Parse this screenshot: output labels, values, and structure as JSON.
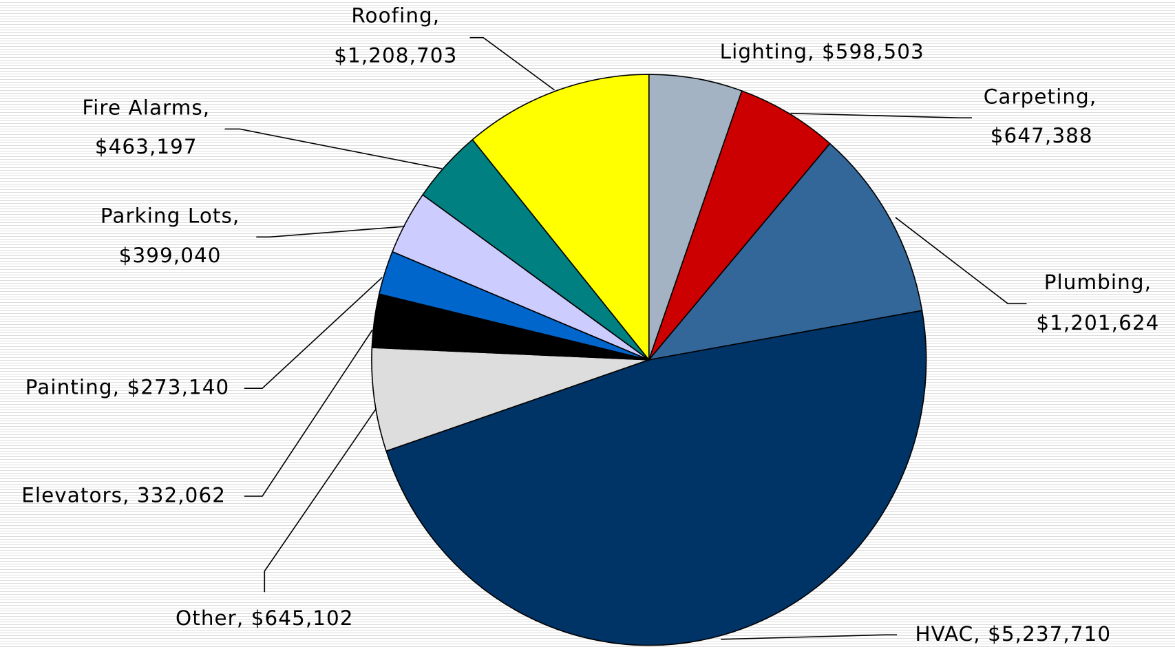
{
  "chart_data": {
    "type": "pie",
    "categories": [
      "Lighting",
      "Carpeting",
      "Plumbing",
      "HVAC",
      "Other",
      "Elevators",
      "Painting",
      "Parking Lots",
      "Fire Alarms",
      "Roofing"
    ],
    "values": [
      598503,
      647388,
      1201624,
      5237710,
      645102,
      332062,
      273140,
      399040,
      463197,
      1208703
    ],
    "labels": [
      [
        "Lighting, $598,503"
      ],
      [
        "Carpeting,",
        "$647,388"
      ],
      [
        "Plumbing,",
        "$1,201,624"
      ],
      [
        "HVAC, $5,237,710"
      ],
      [
        "Other, $645,102"
      ],
      [
        "Elevators, 332,062"
      ],
      [
        "Painting, $273,140"
      ],
      [
        "Parking Lots,",
        "$399,040"
      ],
      [
        "Fire Alarms,",
        "$463,197"
      ],
      [
        "Roofing,",
        "$1,208,703"
      ]
    ],
    "colors": [
      "#a3b3c3",
      "#cc0000",
      "#336699",
      "#003366",
      "#dddddd",
      "#000000",
      "#0066cc",
      "#ccccff",
      "#008080",
      "#ffff00"
    ]
  }
}
